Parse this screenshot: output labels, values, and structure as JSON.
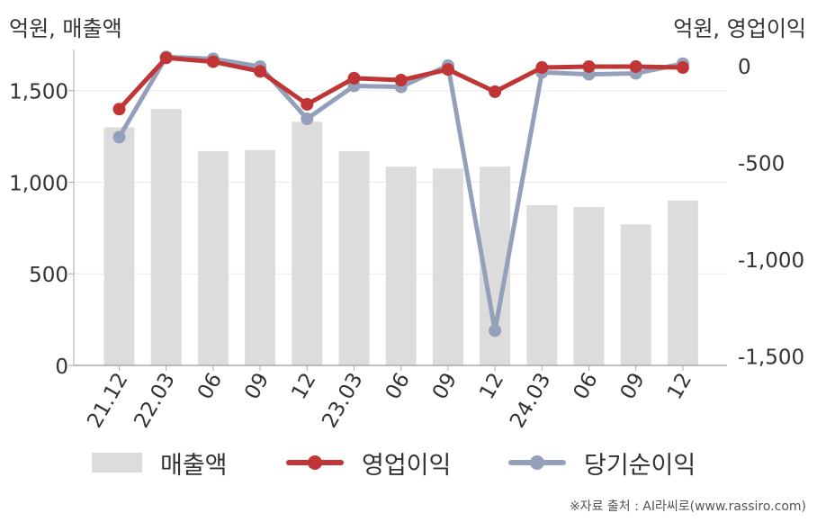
{
  "colors": {
    "bar": "#dcdcdc",
    "operating_profit": "#c03535",
    "net_income": "#94a0ba",
    "axis": "#aaaaaa",
    "grid": "#eaeaea",
    "text": "#333333"
  },
  "chart_data": {
    "type": "bar",
    "title": "",
    "y_left_label": "억원, 매출액",
    "y_right_label": "억원, 영업이익",
    "categories": [
      "21.12",
      "22.03",
      "06",
      "09",
      "12",
      "23.03",
      "06",
      "09",
      "12",
      "24.03",
      "06",
      "09",
      "12"
    ],
    "ylim_left": [
      0,
      1700
    ],
    "ylim_right": [
      -1550,
      60
    ],
    "y_left_ticks": [
      {
        "value": 0,
        "label": "0"
      },
      {
        "value": 500,
        "label": "500"
      },
      {
        "value": 1000,
        "label": "1,000"
      },
      {
        "value": 1500,
        "label": "1,500"
      }
    ],
    "y_right_ticks": [
      {
        "value": 0,
        "label": "0"
      },
      {
        "value": -500,
        "label": "-500"
      },
      {
        "value": -1000,
        "label": "-1,000"
      },
      {
        "value": -1500,
        "label": "-1,500"
      }
    ],
    "grid": true,
    "legend_position": "bottom",
    "series": [
      {
        "name": "매출액",
        "type": "bar",
        "axis": "left",
        "values": [
          1300,
          1400,
          1170,
          1175,
          1330,
          1170,
          1085,
          1075,
          1085,
          875,
          865,
          770,
          900
        ]
      },
      {
        "name": "영업이익",
        "type": "line",
        "axis": "right",
        "values": [
          -225,
          40,
          20,
          -30,
          -200,
          -65,
          -75,
          -20,
          -135,
          -10,
          -5,
          -5,
          -10
        ]
      },
      {
        "name": "당기순이익",
        "type": "line",
        "axis": "right",
        "values": [
          -370,
          45,
          35,
          -5,
          -275,
          -105,
          -110,
          0,
          -1370,
          -35,
          -45,
          -40,
          10
        ]
      }
    ]
  },
  "source_note": "※자료 출처 : AI라씨로(www.rassiro.com)"
}
